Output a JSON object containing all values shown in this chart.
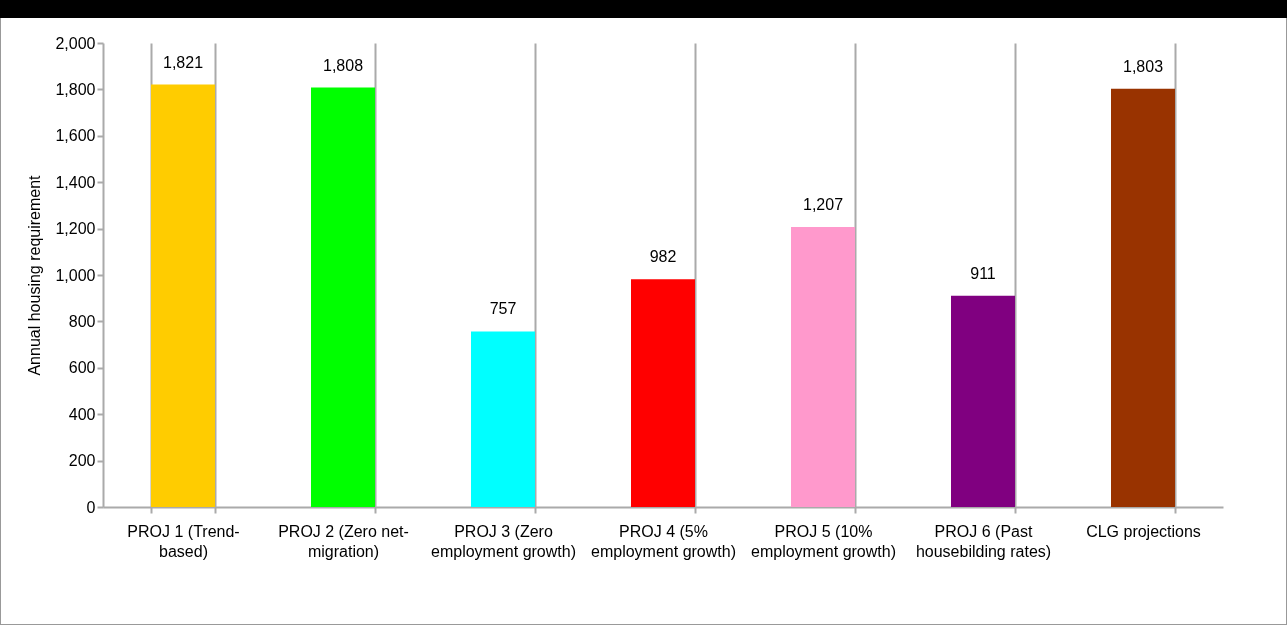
{
  "chart_data": {
    "type": "bar",
    "ylabel": "Annual housing requirement",
    "categories": [
      "PROJ 1 (Trend-based)",
      "PROJ 2 (Zero net-migration)",
      "PROJ 3 (Zero employment growth)",
      "PROJ 4 (5% employment growth)",
      "PROJ 5 (10% employment growth)",
      "PROJ 6 (Past housebilding rates)",
      "CLG projections"
    ],
    "values": [
      1821,
      1808,
      757,
      982,
      1207,
      911,
      1803
    ],
    "value_labels": [
      "1,821",
      "1,808",
      "757",
      "982",
      "1,207",
      "911",
      "1,803"
    ],
    "colors": [
      "#ffcc00",
      "#00ff00",
      "#00ffff",
      "#ff0000",
      "#ff99cc",
      "#800080",
      "#993300"
    ],
    "ylim": [
      0,
      2000
    ],
    "yticks": [
      0,
      {
        "value": 200,
        "label": "200"
      },
      {
        "value": 400,
        "label": "400"
      },
      {
        "value": 600,
        "label": "600"
      },
      {
        "value": 800,
        "label": "800"
      },
      {
        "value": 1000,
        "label": "1,000"
      },
      {
        "value": 1200,
        "label": "1,200"
      },
      {
        "value": 1400,
        "label": "1,400"
      },
      {
        "value": 1600,
        "label": "1,600"
      },
      {
        "value": 1800,
        "label": "1,800"
      },
      {
        "value": 2000,
        "label": "2,000"
      }
    ],
    "grid": "x"
  }
}
